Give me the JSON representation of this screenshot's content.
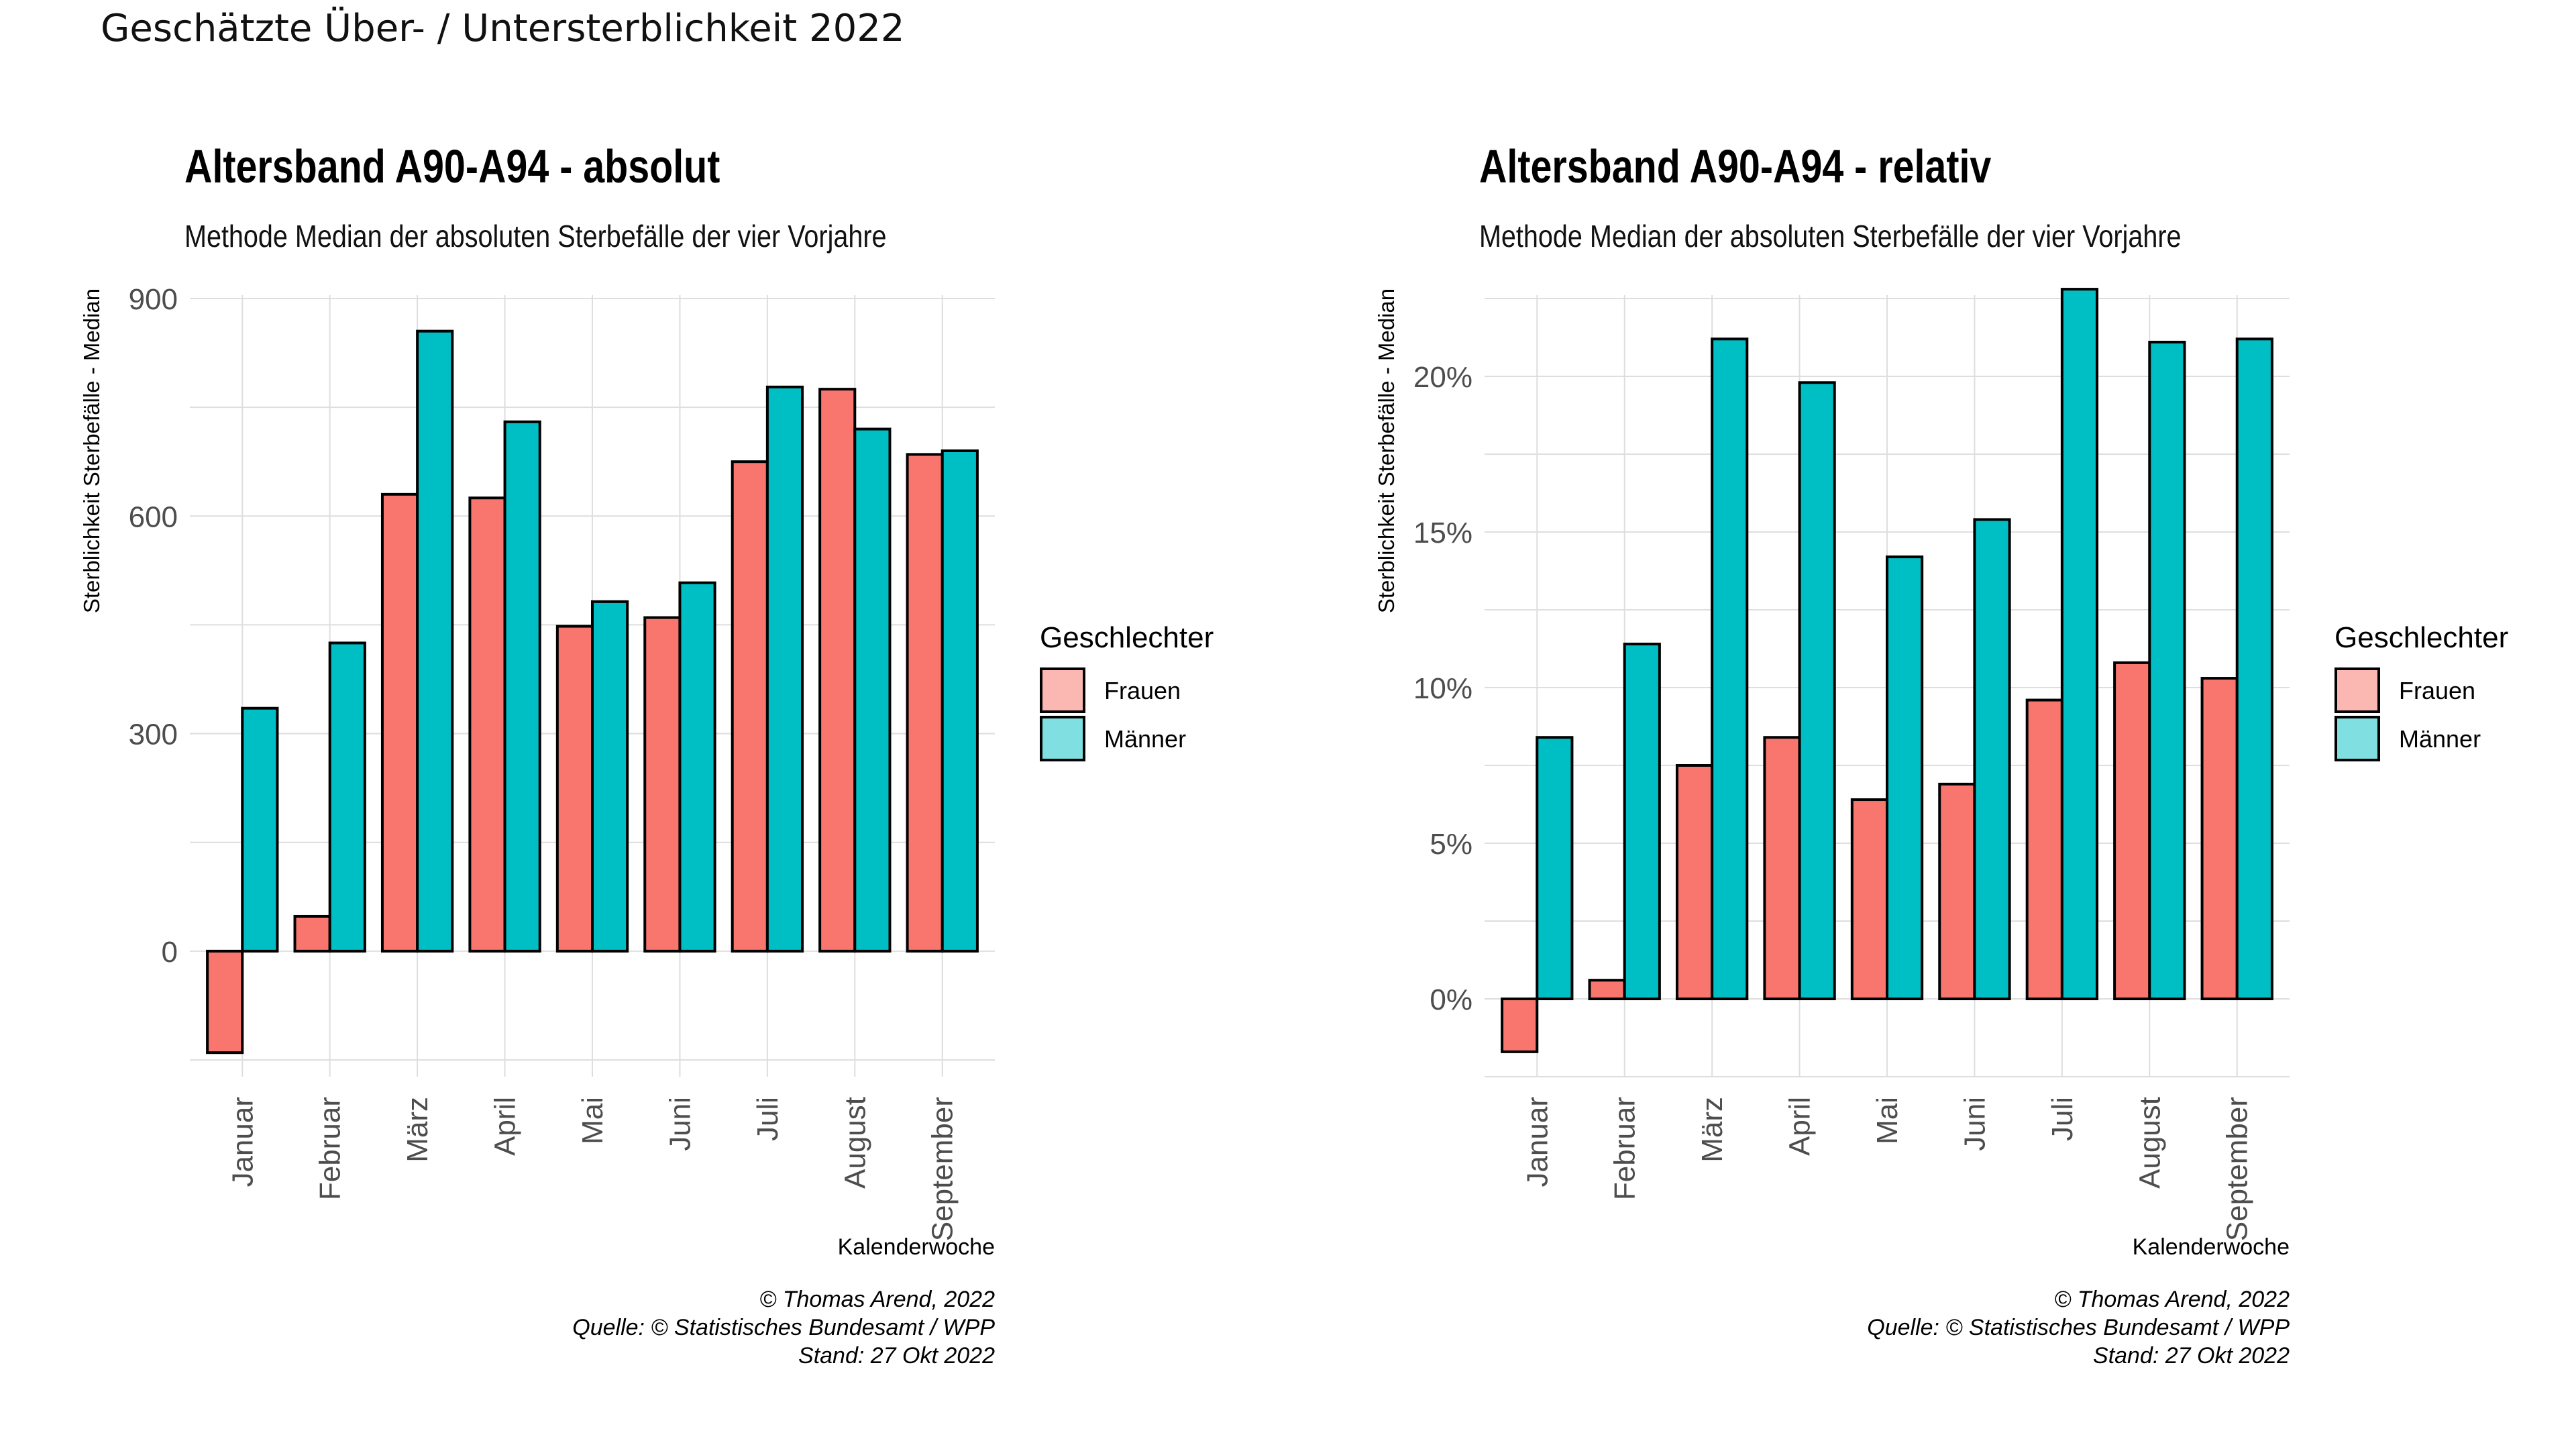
{
  "page_title": "Geschätzte Über- / Untersterblichkeit 2022",
  "colors": {
    "frauen": "#F8766D",
    "maenner": "#00BFC4",
    "frauen_key": "#FBB8B3",
    "maenner_key": "#7FDFE1",
    "grid": "#DEDEDE",
    "bar_outline": "#000000"
  },
  "legend": {
    "title": "Geschlechter",
    "items": [
      "Frauen",
      "Männer"
    ]
  },
  "chart_data": [
    {
      "type": "bar",
      "title": "Altersband A90-A94 - absolut",
      "subtitle": "Methode Median der absoluten Sterbefälle der vier Vorjahre",
      "xlabel": "Kalenderwoche",
      "ylabel": "Sterblichkeit Sterbefälle - Median",
      "categories": [
        "Januar",
        "Februar",
        "März",
        "April",
        "Mai",
        "Juni",
        "Juli",
        "August",
        "September"
      ],
      "series": [
        {
          "name": "Frauen",
          "values": [
            -140,
            48,
            630,
            625,
            448,
            460,
            675,
            775,
            685
          ]
        },
        {
          "name": "Männer",
          "values": [
            335,
            425,
            855,
            730,
            482,
            508,
            778,
            720,
            690
          ]
        }
      ],
      "ylim": [
        -150,
        900
      ],
      "yticks": [
        0,
        300,
        600,
        900
      ],
      "ytick_labels": [
        "0",
        "300",
        "600",
        "900"
      ],
      "grid": true,
      "legend_position": "right",
      "caption": [
        "© Thomas Arend, 2022",
        "Quelle: © Statistisches Bundesamt / WPP",
        "Stand: 27 Okt 2022"
      ]
    },
    {
      "type": "bar",
      "title": "Altersband A90-A94 - relativ",
      "subtitle": "Methode Median der absoluten Sterbefälle der vier Vorjahre",
      "xlabel": "Kalenderwoche",
      "ylabel": "Sterblichkeit Sterbefälle - Median",
      "categories": [
        "Januar",
        "Februar",
        "März",
        "April",
        "Mai",
        "Juni",
        "Juli",
        "August",
        "September"
      ],
      "series": [
        {
          "name": "Frauen",
          "values": [
            -1.7,
            0.6,
            7.5,
            8.4,
            6.4,
            6.9,
            9.6,
            10.8,
            10.3
          ]
        },
        {
          "name": "Männer",
          "values": [
            8.4,
            11.4,
            21.2,
            19.8,
            14.2,
            15.4,
            22.8,
            21.1,
            21.2
          ]
        }
      ],
      "ylim": [
        -2.5,
        22.5
      ],
      "yticks": [
        0,
        5,
        10,
        15,
        20
      ],
      "ytick_labels": [
        "0%",
        "5%",
        "10%",
        "15%",
        "20%"
      ],
      "grid": true,
      "legend_position": "right",
      "caption": [
        "© Thomas Arend, 2022",
        "Quelle: © Statistisches Bundesamt / WPP",
        "Stand: 27 Okt 2022"
      ]
    }
  ]
}
